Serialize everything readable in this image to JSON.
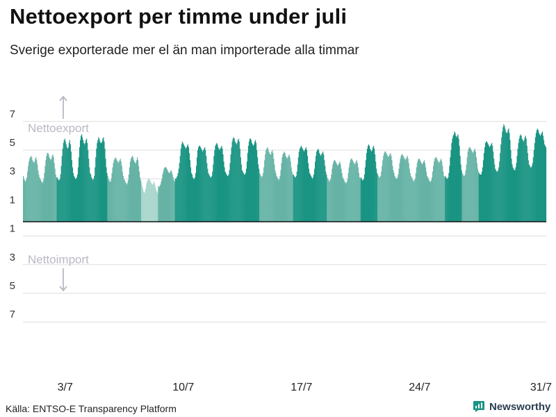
{
  "header": {
    "title": "Nettoexport per timme under juli",
    "subtitle": "Sverige exporterade mer el än man importerade alla timmar"
  },
  "footer": {
    "source": "Källa: ENTSO-E Transparency Platform",
    "brand": "Newsworthy"
  },
  "colors": {
    "bar_light": "#66b3a6",
    "bar_dark": "#1a9483",
    "bar_pale": "#a7d6cc",
    "grid": "#dddddd",
    "zero_line": "#111111",
    "annotation": "#b8b8c4",
    "brand": "#1a9483"
  },
  "chart_data": {
    "type": "bar",
    "x_unit": "date",
    "x_range": [
      "2023-07-01",
      "2023-07-31"
    ],
    "ylim": [
      -9,
      9
    ],
    "y_ticks": [
      {
        "value": 7,
        "label": "7"
      },
      {
        "value": 5,
        "label": "5"
      },
      {
        "value": 3,
        "label": "3"
      },
      {
        "value": 1,
        "label": "1"
      },
      {
        "value": -1,
        "label": "1"
      },
      {
        "value": -3,
        "label": "3"
      },
      {
        "value": -5,
        "label": "5"
      },
      {
        "value": -7,
        "label": "7"
      }
    ],
    "x_ticks": [
      {
        "day": 3,
        "label": "3/7"
      },
      {
        "day": 10,
        "label": "10/7"
      },
      {
        "day": 17,
        "label": "17/7"
      },
      {
        "day": 24,
        "label": "24/7"
      },
      {
        "day": 31,
        "label": "31/7"
      }
    ],
    "annotations": {
      "export_label": "Nettoexport",
      "import_label": "Nettoimport"
    },
    "grid": true,
    "hourly_values": [
      [
        3.2,
        3.0,
        2.9,
        2.8,
        2.9,
        3.1,
        3.5,
        3.9,
        4.2,
        4.4,
        4.5,
        4.6,
        4.5,
        4.3,
        4.2,
        4.1,
        4.2,
        4.4,
        4.5,
        4.3,
        4.0,
        3.6,
        3.3,
        3.1
      ],
      [
        3.0,
        2.9,
        2.8,
        2.7,
        2.8,
        3.0,
        3.4,
        3.9,
        4.3,
        4.6,
        4.8,
        4.8,
        4.7,
        4.5,
        4.4,
        4.3,
        4.4,
        4.6,
        4.7,
        4.5,
        4.1,
        3.7,
        3.3,
        3.1
      ],
      [
        3.1,
        3.0,
        2.9,
        2.9,
        3.0,
        3.3,
        3.9,
        4.6,
        5.1,
        5.5,
        5.7,
        5.8,
        5.6,
        5.4,
        5.2,
        5.1,
        5.2,
        5.5,
        5.7,
        5.4,
        4.9,
        4.3,
        3.8,
        3.4
      ],
      [
        3.2,
        3.1,
        3.0,
        3.0,
        3.1,
        3.3,
        3.8,
        4.5,
        5.2,
        5.7,
        6.0,
        6.1,
        5.9,
        5.7,
        5.5,
        5.4,
        5.5,
        5.7,
        5.8,
        5.5,
        5.0,
        4.4,
        3.8,
        3.4
      ],
      [
        3.3,
        3.1,
        3.0,
        2.9,
        3.0,
        3.2,
        3.8,
        4.5,
        5.1,
        5.5,
        5.7,
        5.9,
        5.8,
        5.6,
        5.5,
        5.5,
        5.6,
        5.8,
        5.9,
        5.6,
        5.1,
        4.4,
        3.8,
        3.4
      ],
      [
        3.2,
        3.0,
        2.9,
        2.8,
        2.8,
        3.0,
        3.4,
        3.8,
        4.1,
        4.3,
        4.4,
        4.5,
        4.4,
        4.3,
        4.2,
        4.1,
        4.2,
        4.3,
        4.4,
        4.2,
        3.9,
        3.5,
        3.2,
        3.0
      ],
      [
        2.9,
        2.8,
        2.7,
        2.6,
        2.7,
        2.9,
        3.3,
        3.8,
        4.2,
        4.4,
        4.5,
        4.6,
        4.5,
        4.3,
        4.2,
        4.1,
        4.1,
        4.3,
        4.5,
        4.3,
        3.9,
        3.5,
        3.1,
        2.9
      ],
      [
        2.7,
        2.5,
        2.3,
        2.1,
        2.0,
        2.1,
        2.3,
        2.6,
        2.8,
        2.9,
        3.0,
        3.0,
        2.9,
        2.8,
        2.7,
        2.6,
        2.6,
        2.7,
        2.8,
        2.6,
        2.4,
        2.2,
        2.1,
        2.0
      ],
      [
        2.5,
        2.4,
        2.5,
        2.6,
        2.8,
        3.0,
        3.3,
        3.5,
        3.7,
        3.8,
        3.8,
        3.8,
        3.7,
        3.6,
        3.5,
        3.4,
        3.4,
        3.5,
        3.6,
        3.5,
        3.3,
        3.1,
        2.9,
        2.8
      ],
      [
        3.0,
        3.0,
        3.1,
        3.2,
        3.4,
        3.7,
        4.1,
        4.6,
        5.1,
        5.4,
        5.6,
        5.5,
        5.4,
        5.3,
        5.2,
        5.1,
        5.2,
        5.3,
        5.4,
        5.2,
        4.8,
        4.3,
        3.8,
        3.4
      ],
      [
        3.3,
        3.1,
        3.0,
        3.0,
        3.1,
        3.4,
        3.9,
        4.5,
        5.0,
        5.2,
        5.3,
        5.3,
        5.2,
        5.1,
        5.0,
        4.9,
        5.0,
        5.1,
        5.2,
        5.0,
        4.6,
        4.1,
        3.7,
        3.4
      ],
      [
        3.3,
        3.2,
        3.1,
        3.1,
        3.2,
        3.5,
        4.0,
        4.6,
        5.0,
        5.3,
        5.4,
        5.5,
        5.4,
        5.2,
        5.1,
        5.0,
        5.1,
        5.2,
        5.3,
        5.1,
        4.7,
        4.2,
        3.8,
        3.5
      ],
      [
        3.4,
        3.3,
        3.2,
        3.2,
        3.3,
        3.6,
        4.1,
        4.7,
        5.2,
        5.6,
        5.8,
        5.9,
        5.8,
        5.6,
        5.5,
        5.4,
        5.5,
        5.7,
        5.8,
        5.6,
        5.1,
        4.5,
        4.0,
        3.6
      ],
      [
        3.5,
        3.4,
        3.3,
        3.3,
        3.4,
        3.7,
        4.2,
        4.8,
        5.3,
        5.6,
        5.8,
        5.8,
        5.7,
        5.5,
        5.4,
        5.3,
        5.4,
        5.6,
        5.7,
        5.5,
        5.0,
        4.5,
        4.0,
        3.7
      ],
      [
        3.4,
        3.3,
        3.2,
        3.1,
        3.2,
        3.4,
        3.8,
        4.3,
        4.7,
        5.0,
        5.1,
        5.2,
        5.1,
        4.9,
        4.8,
        4.7,
        4.7,
        4.9,
        5.0,
        4.8,
        4.4,
        4.0,
        3.6,
        3.4
      ],
      [
        3.2,
        3.1,
        3.0,
        2.9,
        3.0,
        3.2,
        3.6,
        4.1,
        4.5,
        4.7,
        4.8,
        4.9,
        4.8,
        4.6,
        4.5,
        4.4,
        4.5,
        4.6,
        4.7,
        4.5,
        4.2,
        3.8,
        3.5,
        3.3
      ],
      [
        3.3,
        3.2,
        3.1,
        3.1,
        3.2,
        3.5,
        4.0,
        4.5,
        4.9,
        5.1,
        5.2,
        5.3,
        5.2,
        5.1,
        5.0,
        4.9,
        5.0,
        5.1,
        5.2,
        5.0,
        4.6,
        4.1,
        3.7,
        3.4
      ],
      [
        3.3,
        3.2,
        3.1,
        3.0,
        3.1,
        3.3,
        3.7,
        4.2,
        4.6,
        4.9,
        5.0,
        5.1,
        5.0,
        4.8,
        4.7,
        4.6,
        4.7,
        4.8,
        4.9,
        4.7,
        4.3,
        3.9,
        3.5,
        3.3
      ],
      [
        3.1,
        3.0,
        2.9,
        2.8,
        2.9,
        3.0,
        3.3,
        3.7,
        4.0,
        4.2,
        4.3,
        4.3,
        4.2,
        4.1,
        4.0,
        3.9,
        4.0,
        4.1,
        4.2,
        4.0,
        3.7,
        3.4,
        3.1,
        3.0
      ],
      [
        2.9,
        2.8,
        2.7,
        2.7,
        2.8,
        3.0,
        3.4,
        3.8,
        4.1,
        4.3,
        4.4,
        4.4,
        4.3,
        4.2,
        4.1,
        4.0,
        4.1,
        4.2,
        4.3,
        4.1,
        3.8,
        3.4,
        3.1,
        3.0
      ],
      [
        3.1,
        3.0,
        2.9,
        2.9,
        3.0,
        3.3,
        3.8,
        4.3,
        4.8,
        5.1,
        5.3,
        5.4,
        5.3,
        5.1,
        5.0,
        4.9,
        5.0,
        5.2,
        5.3,
        5.1,
        4.7,
        4.2,
        3.7,
        3.4
      ],
      [
        3.3,
        3.2,
        3.1,
        3.1,
        3.2,
        3.5,
        3.9,
        4.3,
        4.6,
        4.8,
        4.9,
        4.9,
        4.8,
        4.7,
        4.6,
        4.5,
        4.6,
        4.7,
        4.8,
        4.6,
        4.3,
        3.9,
        3.6,
        3.4
      ],
      [
        3.2,
        3.1,
        3.0,
        3.0,
        3.1,
        3.3,
        3.7,
        4.1,
        4.4,
        4.6,
        4.7,
        4.7,
        4.6,
        4.5,
        4.4,
        4.3,
        4.4,
        4.5,
        4.6,
        4.4,
        4.1,
        3.7,
        3.4,
        3.2
      ],
      [
        3.1,
        3.0,
        2.9,
        2.8,
        2.9,
        3.0,
        3.4,
        3.8,
        4.1,
        4.3,
        4.4,
        4.4,
        4.3,
        4.2,
        4.1,
        4.0,
        4.1,
        4.2,
        4.3,
        4.1,
        3.8,
        3.5,
        3.2,
        3.1
      ],
      [
        3.0,
        2.9,
        2.8,
        2.8,
        2.9,
        3.1,
        3.5,
        3.9,
        4.2,
        4.4,
        4.5,
        4.5,
        4.4,
        4.3,
        4.2,
        4.1,
        4.2,
        4.3,
        4.4,
        4.2,
        3.9,
        3.5,
        3.2,
        3.1
      ],
      [
        3.2,
        3.1,
        3.0,
        3.0,
        3.1,
        3.4,
        3.9,
        4.5,
        5.0,
        5.5,
        5.8,
        6.0,
        6.1,
        6.3,
        6.2,
        6.0,
        5.9,
        6.0,
        6.1,
        5.8,
        5.3,
        4.6,
        4.0,
        3.6
      ],
      [
        3.4,
        3.3,
        3.2,
        3.2,
        3.3,
        3.6,
        4.0,
        4.5,
        4.9,
        5.1,
        5.2,
        5.2,
        5.1,
        5.0,
        4.9,
        4.8,
        4.9,
        5.0,
        5.1,
        4.9,
        4.5,
        4.1,
        3.7,
        3.5
      ],
      [
        3.4,
        3.3,
        3.3,
        3.3,
        3.5,
        3.8,
        4.3,
        4.8,
        5.2,
        5.5,
        5.6,
        5.6,
        5.5,
        5.4,
        5.3,
        5.2,
        5.3,
        5.4,
        5.5,
        5.3,
        4.9,
        4.4,
        4.0,
        3.7
      ],
      [
        3.6,
        3.5,
        3.5,
        3.6,
        3.8,
        4.2,
        4.8,
        5.4,
        5.9,
        6.3,
        6.6,
        6.8,
        6.7,
        6.5,
        6.3,
        6.2,
        6.2,
        6.4,
        6.5,
        6.2,
        5.7,
        5.0,
        4.4,
        4.0
      ],
      [
        3.8,
        3.7,
        3.6,
        3.6,
        3.8,
        4.1,
        4.6,
        5.1,
        5.5,
        5.8,
        6.0,
        6.1,
        6.0,
        5.8,
        5.7,
        5.6,
        5.7,
        5.9,
        6.0,
        5.8,
        5.3,
        4.8,
        4.3,
        4.0
      ],
      [
        3.9,
        3.8,
        3.8,
        3.9,
        4.1,
        4.5,
        5.0,
        5.5,
        5.9,
        6.2,
        6.4,
        6.5,
        6.4,
        6.2,
        6.1,
        6.0,
        6.1,
        6.2,
        6.3,
        6.0,
        5.7,
        5.4,
        5.3,
        5.2
      ]
    ],
    "color_by_day": [
      "light",
      "light",
      "dark",
      "dark",
      "dark",
      "light",
      "light",
      "pale",
      "light",
      "dark",
      "dark",
      "dark",
      "dark",
      "dark",
      "light",
      "light",
      "dark",
      "dark",
      "light",
      "light",
      "dark",
      "light",
      "light",
      "light",
      "light",
      "dark",
      "light",
      "dark",
      "dark",
      "dark",
      "dark"
    ]
  }
}
